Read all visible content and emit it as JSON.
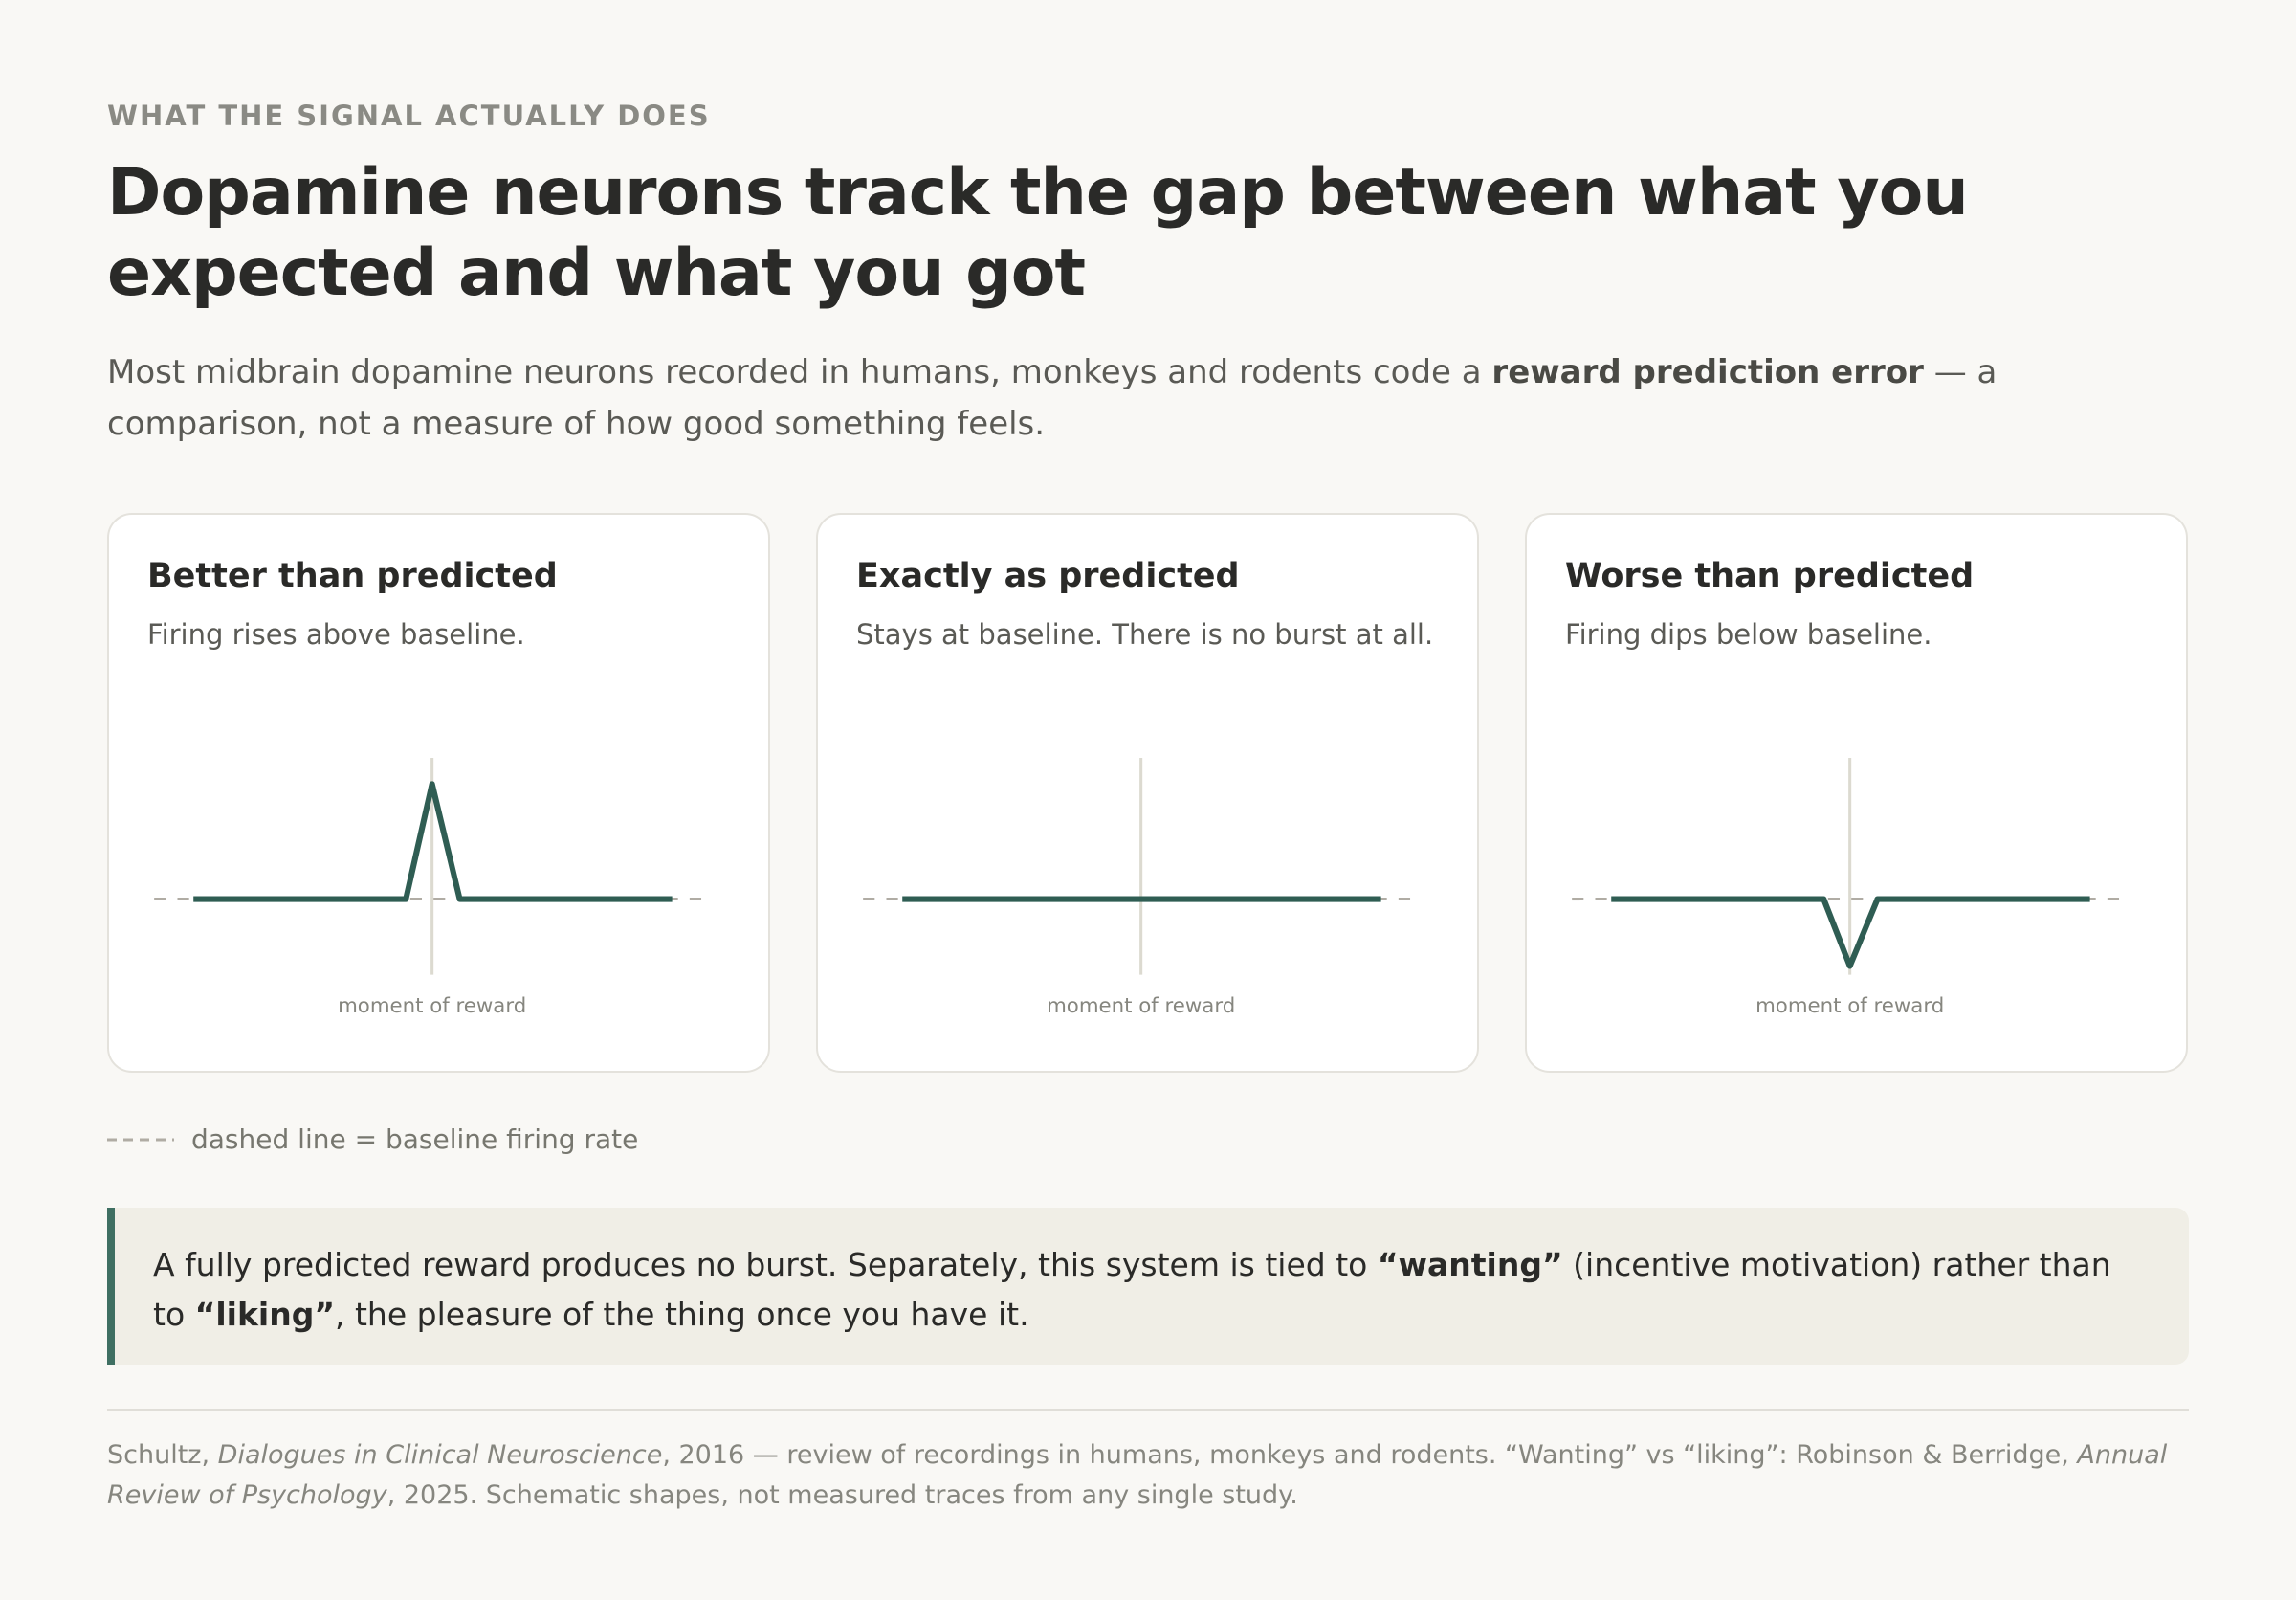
{
  "eyebrow": "WHAT THE SIGNAL ACTUALLY DOES",
  "title": "Dopamine neurons track the gap between what you expected and what you got",
  "lede": {
    "before": "Most midbrain dopamine neurons recorded in humans, monkeys and rodents code a",
    "bold": "reward prediction error",
    "after": "— a comparison, not a measure of how good something feels."
  },
  "panels": [
    {
      "title": "Better than predicted",
      "description": "Firing rises above baseline.",
      "axis_label": "moment of reward"
    },
    {
      "title": "Exactly as predicted",
      "description": "Stays at baseline. There is no burst at all.",
      "axis_label": "moment of reward"
    },
    {
      "title": "Worse than predicted",
      "description": "Firing dips below baseline.",
      "axis_label": "moment of reward"
    }
  ],
  "legend": "dashed line = baseline firing rate",
  "callout": {
    "part1": "A fully predicted reward produces no burst. Separately, this system is tied to",
    "bold1": "“wanting”",
    "part2": "(incentive motivation) rather than to",
    "bold2": "“liking”",
    "part3": ", the pleasure of the thing once you have it."
  },
  "footnote": {
    "part1": "Schultz,",
    "italic1": "Dialogues in Clinical Neuroscience",
    "part2": ", 2016 — review of recordings in humans, monkeys and rodents. “Wanting” vs “liking”: Robinson & Berridge,",
    "italic2": "Annual Review of Psychology",
    "part3": ", 2025. Schematic shapes, not measured traces from any single study."
  }
}
